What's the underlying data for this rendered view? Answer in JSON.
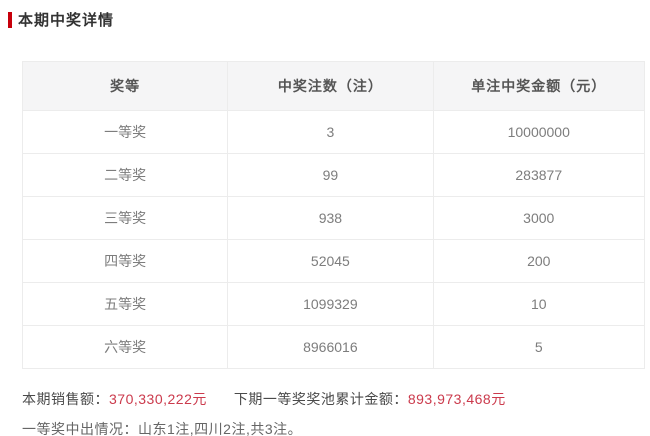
{
  "page_title": "本期中奖详情",
  "colors": {
    "accent_red": "#c7000b",
    "number_red": "#cb3a4c",
    "header_bg": "#f5f5f6",
    "border": "#ececec"
  },
  "table": {
    "headers": [
      "奖等",
      "中奖注数（注）",
      "单注中奖金额（元）"
    ],
    "rows": [
      {
        "level": "一等奖",
        "count": "3",
        "amount": "10000000"
      },
      {
        "level": "二等奖",
        "count": "99",
        "amount": "283877"
      },
      {
        "level": "三等奖",
        "count": "938",
        "amount": "3000"
      },
      {
        "level": "四等奖",
        "count": "52045",
        "amount": "200"
      },
      {
        "level": "五等奖",
        "count": "1099329",
        "amount": "10"
      },
      {
        "level": "六等奖",
        "count": "8966016",
        "amount": "5"
      }
    ]
  },
  "summary": {
    "sales_label": "本期销售额：",
    "sales_value": "370,330,222元",
    "jackpot_label": "下期一等奖奖池累计金额：",
    "jackpot_value": "893,973,468元",
    "first_prize_detail": "一等奖中出情况：山东1注,四川2注,共3注。"
  }
}
